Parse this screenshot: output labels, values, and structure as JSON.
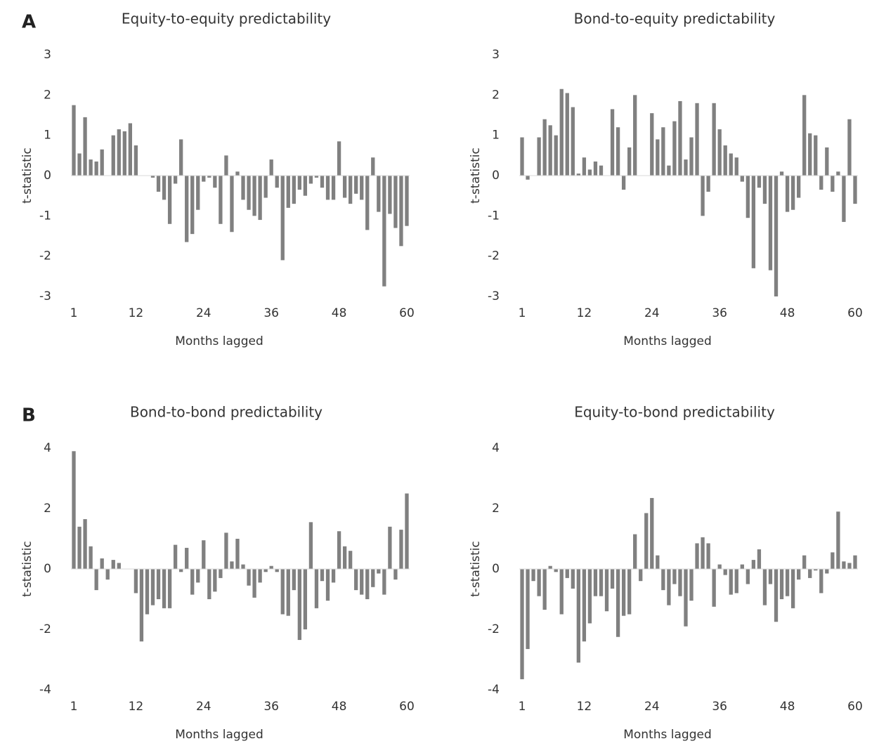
{
  "chart_data": [
    {
      "type": "bar",
      "panel": "A",
      "title": "Equity-to-equity predictability",
      "xlabel": "Months lagged",
      "ylabel": "t-statistic",
      "color": "#808080",
      "x": [
        1,
        2,
        3,
        4,
        5,
        6,
        7,
        8,
        9,
        10,
        11,
        12,
        13,
        14,
        15,
        16,
        17,
        18,
        19,
        20,
        21,
        22,
        23,
        24,
        25,
        26,
        27,
        28,
        29,
        30,
        31,
        32,
        33,
        34,
        35,
        36,
        37,
        38,
        39,
        40,
        41,
        42,
        43,
        44,
        45,
        46,
        47,
        48,
        49,
        50,
        51,
        52,
        53,
        54,
        55,
        56,
        57,
        58,
        59,
        60
      ],
      "values": [
        1.75,
        0.55,
        1.45,
        0.4,
        0.35,
        0.65,
        0,
        1.0,
        1.15,
        1.1,
        1.3,
        0.75,
        0,
        0,
        -0.05,
        -0.4,
        -0.6,
        -1.2,
        -0.2,
        0.9,
        -1.65,
        -1.45,
        -0.85,
        -0.15,
        -0.05,
        -0.3,
        -1.2,
        0.5,
        -1.4,
        0.1,
        -0.6,
        -0.85,
        -1.0,
        -1.1,
        -0.55,
        0.4,
        -0.3,
        -2.1,
        -0.8,
        -0.7,
        -0.35,
        -0.5,
        -0.2,
        -0.05,
        -0.3,
        -0.6,
        -0.6,
        0.85,
        -0.55,
        -0.7,
        -0.45,
        -0.6,
        -1.35,
        0.45,
        -0.9,
        -2.75,
        -0.95,
        -1.3,
        -1.75,
        -1.25
      ],
      "xlim": [
        0.5,
        60.5
      ],
      "xticks": [
        1,
        12,
        24,
        36,
        48,
        60
      ],
      "ylim": [
        -3,
        3
      ],
      "yticks": [
        -3,
        -2,
        -1,
        0,
        1,
        2,
        3
      ]
    },
    {
      "type": "bar",
      "title": "Bond-to-equity predictability",
      "xlabel": "Months lagged",
      "ylabel": "t-statistic",
      "color": "#808080",
      "x": [
        1,
        2,
        3,
        4,
        5,
        6,
        7,
        8,
        9,
        10,
        11,
        12,
        13,
        14,
        15,
        16,
        17,
        18,
        19,
        20,
        21,
        22,
        23,
        24,
        25,
        26,
        27,
        28,
        29,
        30,
        31,
        32,
        33,
        34,
        35,
        36,
        37,
        38,
        39,
        40,
        41,
        42,
        43,
        44,
        45,
        46,
        47,
        48,
        49,
        50,
        51,
        52,
        53,
        54,
        55,
        56,
        57,
        58,
        59,
        60
      ],
      "values": [
        0.95,
        -0.1,
        0,
        0.95,
        1.4,
        1.25,
        1.0,
        2.15,
        2.05,
        1.7,
        0.05,
        0.45,
        0.15,
        0.35,
        0.25,
        0,
        1.65,
        1.2,
        -0.35,
        0.7,
        2.0,
        0,
        0,
        1.55,
        0.9,
        1.2,
        0.25,
        1.35,
        1.85,
        0.4,
        0.95,
        1.8,
        -1.0,
        -0.4,
        1.8,
        1.15,
        0.75,
        0.55,
        0.45,
        -0.15,
        -1.05,
        -2.3,
        -0.3,
        -0.7,
        -2.35,
        -3.0,
        0.1,
        -0.9,
        -0.85,
        -0.55,
        2.0,
        1.05,
        1.0,
        -0.35,
        0.7,
        -0.4,
        0.1,
        -1.15,
        1.4,
        -0.7
      ],
      "xlim": [
        0.5,
        60.5
      ],
      "xticks": [
        1,
        12,
        24,
        36,
        48,
        60
      ],
      "ylim": [
        -3,
        3
      ],
      "yticks": [
        -3,
        -2,
        -1,
        0,
        1,
        2,
        3
      ]
    },
    {
      "type": "bar",
      "panel": "B",
      "title": "Bond-to-bond predictability",
      "xlabel": "Months lagged",
      "ylabel": "t-statistic",
      "color": "#808080",
      "x": [
        1,
        2,
        3,
        4,
        5,
        6,
        7,
        8,
        9,
        10,
        11,
        12,
        13,
        14,
        15,
        16,
        17,
        18,
        19,
        20,
        21,
        22,
        23,
        24,
        25,
        26,
        27,
        28,
        29,
        30,
        31,
        32,
        33,
        34,
        35,
        36,
        37,
        38,
        39,
        40,
        41,
        42,
        43,
        44,
        45,
        46,
        47,
        48,
        49,
        50,
        51,
        52,
        53,
        54,
        55,
        56,
        57,
        58,
        59,
        60
      ],
      "values": [
        3.9,
        1.4,
        1.65,
        0.75,
        -0.7,
        0.35,
        -0.35,
        0.3,
        0.2,
        0,
        0,
        -0.8,
        -2.4,
        -1.5,
        -1.2,
        -1.0,
        -1.3,
        -1.3,
        0.8,
        -0.1,
        0.7,
        -0.85,
        -0.45,
        0.95,
        -1.0,
        -0.75,
        -0.3,
        1.2,
        0.25,
        1.0,
        0.15,
        -0.55,
        -0.95,
        -0.45,
        -0.1,
        0.1,
        -0.1,
        -1.5,
        -1.55,
        -0.7,
        -2.35,
        -2.0,
        1.55,
        -1.3,
        -0.4,
        -1.05,
        -0.45,
        1.25,
        0.75,
        0.6,
        -0.7,
        -0.85,
        -1.0,
        -0.6,
        -0.15,
        -0.85,
        1.4,
        -0.35,
        1.3,
        2.5
      ],
      "xlim": [
        0.5,
        60.5
      ],
      "xticks": [
        1,
        12,
        24,
        36,
        48,
        60
      ],
      "ylim": [
        -4,
        4
      ],
      "yticks": [
        -4,
        -2,
        0,
        2,
        4
      ]
    },
    {
      "type": "bar",
      "title": "Equity-to-bond predictability",
      "xlabel": "Months lagged",
      "ylabel": "t-statistic",
      "color": "#808080",
      "x": [
        1,
        2,
        3,
        4,
        5,
        6,
        7,
        8,
        9,
        10,
        11,
        12,
        13,
        14,
        15,
        16,
        17,
        18,
        19,
        20,
        21,
        22,
        23,
        24,
        25,
        26,
        27,
        28,
        29,
        30,
        31,
        32,
        33,
        34,
        35,
        36,
        37,
        38,
        39,
        40,
        41,
        42,
        43,
        44,
        45,
        46,
        47,
        48,
        49,
        50,
        51,
        52,
        53,
        54,
        55,
        56,
        57,
        58,
        59,
        60
      ],
      "values": [
        -3.65,
        -2.65,
        -0.4,
        -0.9,
        -1.35,
        0.1,
        -0.1,
        -1.5,
        -0.3,
        -0.65,
        -3.1,
        -2.4,
        -1.8,
        -0.9,
        -0.9,
        -1.4,
        -0.65,
        -2.25,
        -1.55,
        -1.5,
        1.15,
        -0.4,
        1.85,
        2.35,
        0.45,
        -0.7,
        -1.2,
        -0.5,
        -0.9,
        -1.9,
        -1.05,
        0.85,
        1.05,
        0.85,
        -1.25,
        0.15,
        -0.2,
        -0.85,
        -0.8,
        0.15,
        -0.5,
        0.3,
        0.65,
        -1.2,
        -0.5,
        -1.75,
        -1.0,
        -0.9,
        -1.3,
        -0.35,
        0.45,
        -0.3,
        -0.05,
        -0.8,
        -0.15,
        0.55,
        1.9,
        0.25,
        0.2,
        0.45
      ],
      "xlim": [
        0.5,
        60.5
      ],
      "xticks": [
        1,
        12,
        24,
        36,
        48,
        60
      ],
      "ylim": [
        -4,
        4
      ],
      "yticks": [
        -4,
        -2,
        0,
        2,
        4
      ]
    }
  ]
}
